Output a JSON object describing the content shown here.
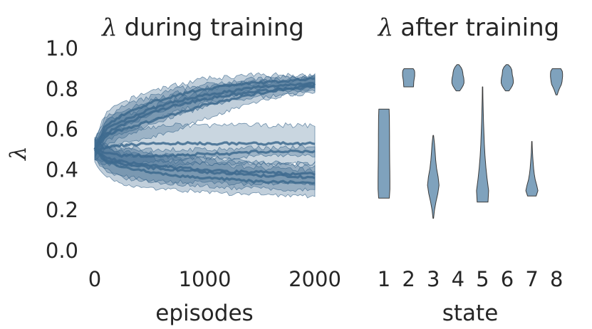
{
  "chart_data": [
    {
      "type": "area",
      "title_symbol": "λ",
      "title": "during training",
      "xlabel": "episodes",
      "ylabel": "λ",
      "xlim": [
        0,
        2000
      ],
      "ylim": [
        0.0,
        1.0
      ],
      "xticks": [
        "0",
        "1000",
        "2000"
      ],
      "yticks": [
        "0.0",
        "0.2",
        "0.4",
        "0.6",
        "0.8",
        "1.0"
      ],
      "grid": false,
      "fill_color": "#3d6a8e",
      "x": [
        0,
        100,
        250,
        500,
        750,
        1000,
        1250,
        1500,
        1750,
        2000
      ],
      "series": [
        {
          "mean": [
            0.5,
            0.58,
            0.62,
            0.68,
            0.72,
            0.75,
            0.77,
            0.79,
            0.8,
            0.81
          ],
          "lower": [
            0.46,
            0.52,
            0.56,
            0.62,
            0.67,
            0.71,
            0.74,
            0.76,
            0.77,
            0.78
          ],
          "upper": [
            0.54,
            0.64,
            0.69,
            0.74,
            0.78,
            0.81,
            0.82,
            0.83,
            0.84,
            0.85
          ]
        },
        {
          "mean": [
            0.5,
            0.6,
            0.64,
            0.7,
            0.74,
            0.77,
            0.79,
            0.81,
            0.82,
            0.83
          ],
          "lower": [
            0.46,
            0.54,
            0.58,
            0.64,
            0.69,
            0.73,
            0.76,
            0.78,
            0.79,
            0.8
          ],
          "upper": [
            0.54,
            0.66,
            0.71,
            0.76,
            0.8,
            0.82,
            0.84,
            0.85,
            0.86,
            0.86
          ]
        },
        {
          "mean": [
            0.5,
            0.62,
            0.67,
            0.73,
            0.77,
            0.8,
            0.82,
            0.83,
            0.84,
            0.85
          ],
          "lower": [
            0.46,
            0.56,
            0.61,
            0.67,
            0.72,
            0.75,
            0.78,
            0.8,
            0.81,
            0.82
          ],
          "upper": [
            0.54,
            0.68,
            0.73,
            0.79,
            0.82,
            0.85,
            0.86,
            0.87,
            0.87,
            0.87
          ]
        },
        {
          "mean": [
            0.5,
            0.57,
            0.6,
            0.64,
            0.68,
            0.72,
            0.75,
            0.78,
            0.8,
            0.82
          ],
          "lower": [
            0.45,
            0.5,
            0.53,
            0.56,
            0.6,
            0.65,
            0.7,
            0.74,
            0.77,
            0.79
          ],
          "upper": [
            0.55,
            0.64,
            0.67,
            0.71,
            0.75,
            0.79,
            0.82,
            0.84,
            0.85,
            0.86
          ]
        },
        {
          "mean": [
            0.5,
            0.51,
            0.52,
            0.53,
            0.53,
            0.53,
            0.53,
            0.53,
            0.53,
            0.53
          ],
          "lower": [
            0.45,
            0.43,
            0.42,
            0.42,
            0.42,
            0.43,
            0.43,
            0.43,
            0.43,
            0.43
          ],
          "upper": [
            0.55,
            0.58,
            0.6,
            0.61,
            0.62,
            0.62,
            0.62,
            0.62,
            0.62,
            0.62
          ]
        },
        {
          "mean": [
            0.5,
            0.48,
            0.47,
            0.47,
            0.47,
            0.48,
            0.48,
            0.49,
            0.49,
            0.49
          ],
          "lower": [
            0.46,
            0.44,
            0.43,
            0.44,
            0.45,
            0.46,
            0.46,
            0.47,
            0.47,
            0.47
          ],
          "upper": [
            0.54,
            0.52,
            0.51,
            0.5,
            0.5,
            0.5,
            0.5,
            0.51,
            0.51,
            0.51
          ]
        },
        {
          "mean": [
            0.5,
            0.46,
            0.44,
            0.42,
            0.41,
            0.4,
            0.39,
            0.39,
            0.38,
            0.38
          ],
          "lower": [
            0.45,
            0.4,
            0.37,
            0.35,
            0.34,
            0.34,
            0.33,
            0.33,
            0.33,
            0.33
          ],
          "upper": [
            0.55,
            0.52,
            0.5,
            0.48,
            0.47,
            0.46,
            0.45,
            0.44,
            0.43,
            0.43
          ]
        },
        {
          "mean": [
            0.5,
            0.45,
            0.43,
            0.41,
            0.4,
            0.39,
            0.38,
            0.37,
            0.37,
            0.36
          ],
          "lower": [
            0.45,
            0.39,
            0.36,
            0.34,
            0.33,
            0.32,
            0.31,
            0.31,
            0.3,
            0.3
          ],
          "upper": [
            0.55,
            0.51,
            0.49,
            0.47,
            0.46,
            0.45,
            0.44,
            0.43,
            0.42,
            0.42
          ]
        },
        {
          "mean": [
            0.5,
            0.44,
            0.41,
            0.39,
            0.37,
            0.36,
            0.35,
            0.34,
            0.34,
            0.33
          ],
          "lower": [
            0.44,
            0.37,
            0.33,
            0.31,
            0.3,
            0.29,
            0.28,
            0.28,
            0.27,
            0.27
          ],
          "upper": [
            0.56,
            0.51,
            0.48,
            0.46,
            0.44,
            0.43,
            0.42,
            0.41,
            0.4,
            0.4
          ]
        }
      ]
    },
    {
      "type": "violin",
      "title_symbol": "λ",
      "title": "after training",
      "xlabel": "state",
      "categories": [
        "1",
        "2",
        "3",
        "4",
        "5",
        "6",
        "7",
        "8"
      ],
      "ylim": [
        0.0,
        1.0
      ],
      "grid": false,
      "fill_color": "#7fa2bd",
      "edge_color": "#3a3a3a",
      "violins": [
        {
          "state": "1",
          "min": 0.26,
          "max": 0.7,
          "profile": [
            0.88,
            0.98,
            0.98,
            0.96,
            0.94,
            0.93,
            0.92,
            0.92,
            0.91,
            0.9,
            0.85
          ]
        },
        {
          "state": "2",
          "min": 0.81,
          "max": 0.9,
          "profile": [
            0.8,
            0.82,
            0.84,
            0.86,
            0.9,
            0.95,
            1.0,
            1.0,
            1.0,
            0.95,
            0.75
          ]
        },
        {
          "state": "3",
          "min": 0.16,
          "max": 0.57,
          "profile": [
            0.05,
            0.2,
            0.45,
            0.75,
            0.95,
            0.8,
            0.55,
            0.4,
            0.3,
            0.2,
            0.05
          ]
        },
        {
          "state": "4",
          "min": 0.79,
          "max": 0.92,
          "profile": [
            0.3,
            0.6,
            0.85,
            1.0,
            1.0,
            0.95,
            0.85,
            0.8,
            0.7,
            0.5,
            0.15
          ]
        },
        {
          "state": "5",
          "min": 0.24,
          "max": 0.81,
          "profile": [
            0.9,
            1.0,
            0.75,
            0.55,
            0.4,
            0.3,
            0.22,
            0.15,
            0.1,
            0.06,
            0.03
          ]
        },
        {
          "state": "6",
          "min": 0.79,
          "max": 0.92,
          "profile": [
            0.3,
            0.6,
            0.85,
            1.0,
            1.0,
            0.95,
            0.85,
            0.8,
            0.75,
            0.55,
            0.15
          ]
        },
        {
          "state": "7",
          "min": 0.27,
          "max": 0.54,
          "profile": [
            0.7,
            1.0,
            0.8,
            0.55,
            0.4,
            0.3,
            0.22,
            0.15,
            0.1,
            0.06,
            0.03
          ]
        },
        {
          "state": "8",
          "min": 0.77,
          "max": 0.9,
          "profile": [
            0.1,
            0.25,
            0.4,
            0.6,
            0.8,
            0.9,
            0.95,
            1.0,
            1.0,
            0.95,
            0.7
          ]
        }
      ]
    }
  ]
}
